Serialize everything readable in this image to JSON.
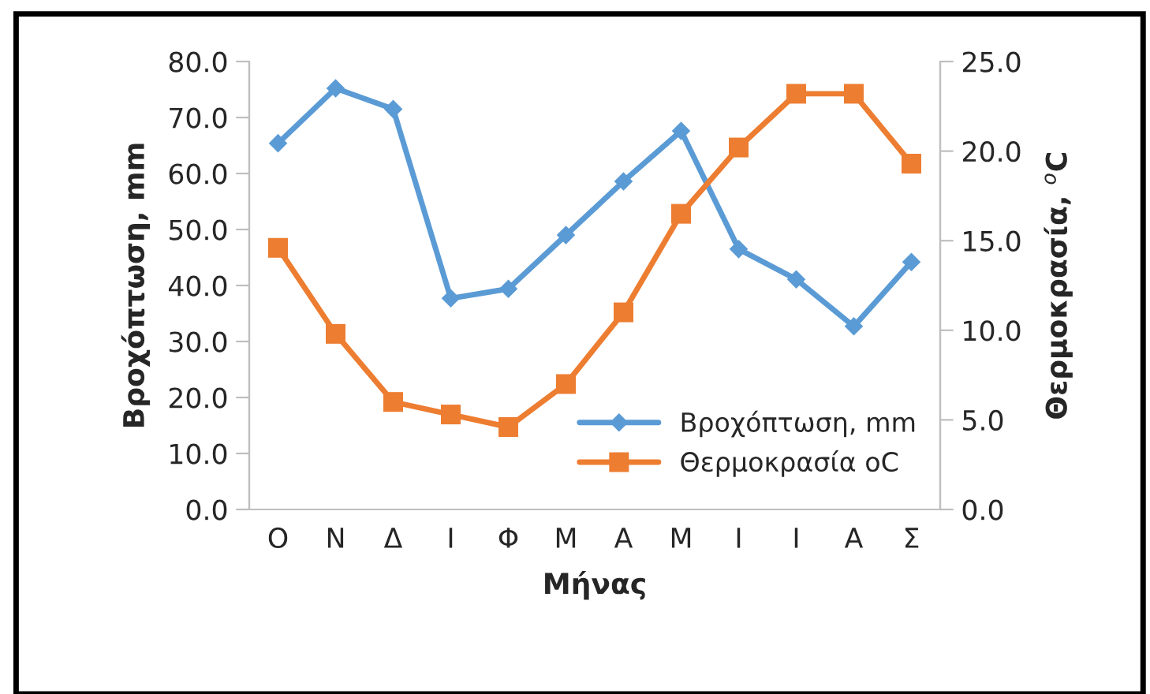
{
  "chart_data": {
    "type": "line",
    "xlabel": "Μήνας",
    "ylabel": "Βροχόπτωση, mm",
    "y2label": "Θερμοκρασία, $^{o}$C",
    "categories": [
      "Ο",
      "Ν",
      "Δ",
      "Ι",
      "Φ",
      "Μ",
      "Α",
      "Μ",
      "Ι",
      "Ι",
      "Α",
      "Σ"
    ],
    "series": [
      {
        "name": "Βροχόπτωση, mm",
        "color": "#5b9bd5",
        "marker": "diamond",
        "values": [
          65.4,
          75.2,
          71.5,
          37.7,
          39.4,
          49.0,
          58.6,
          67.6,
          46.5,
          41.1,
          32.7,
          44.2
        ]
      },
      {
        "name": "Θερμοκρασία oC",
        "color": "#ed7d31",
        "marker": "square",
        "axis": "y2",
        "values": [
          14.6,
          9.8,
          6.0,
          5.3,
          4.6,
          7.0,
          11.0,
          16.5,
          20.2,
          23.2,
          23.2,
          19.3
        ]
      }
    ],
    "ylim": [
      0,
      80
    ],
    "yticks": [
      {
        "value": 0,
        "label": "0.0"
      },
      {
        "value": 10,
        "label": "10.0"
      },
      {
        "value": 20,
        "label": "20.0"
      },
      {
        "value": 30,
        "label": "30.0"
      },
      {
        "value": 40,
        "label": "40.0"
      },
      {
        "value": 50,
        "label": "50.0"
      },
      {
        "value": 60,
        "label": "60.0"
      },
      {
        "value": 70,
        "label": "70.0"
      },
      {
        "value": 80,
        "label": "80.0"
      }
    ],
    "y2lim": [
      0,
      25
    ],
    "y2ticks": [
      {
        "value": 0,
        "label": "0.0"
      },
      {
        "value": 5,
        "label": "5.0"
      },
      {
        "value": 10,
        "label": "10.0"
      },
      {
        "value": 15,
        "label": "15.0"
      },
      {
        "value": 20,
        "label": "20.0"
      },
      {
        "value": 25,
        "label": "25.0"
      }
    ],
    "grid": false,
    "legend": "bottom right",
    "line_style": "solid"
  }
}
